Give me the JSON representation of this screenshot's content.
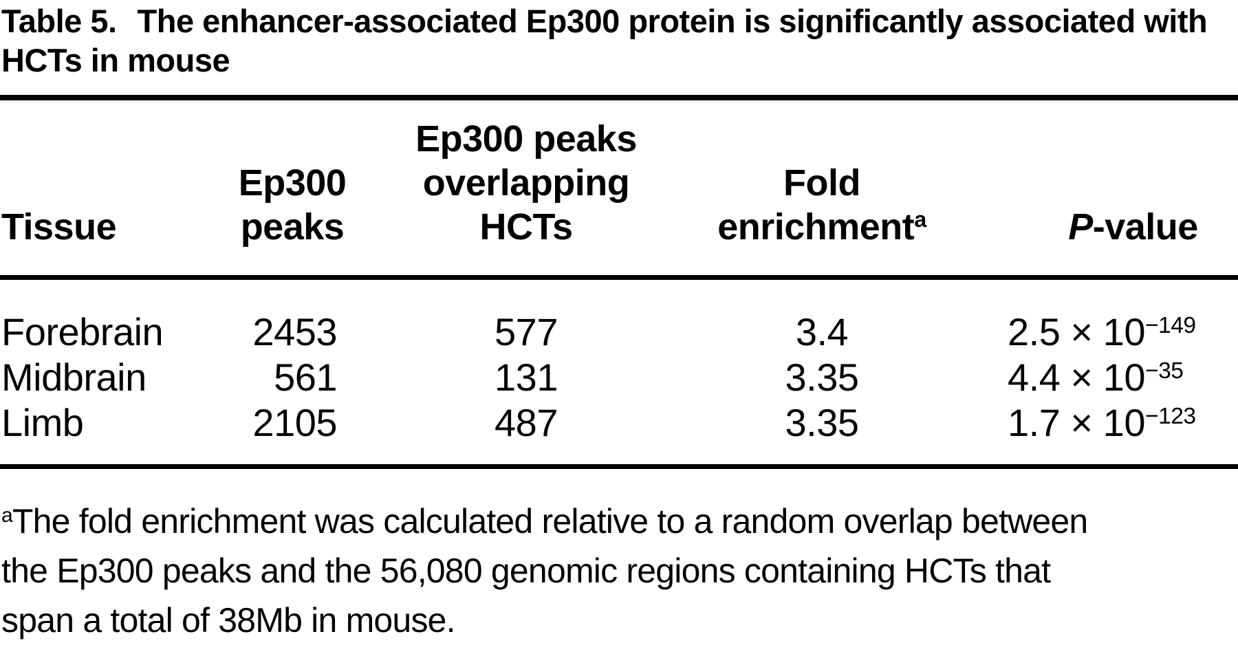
{
  "title": {
    "label": "Table 5.",
    "text": "The enhancer-associated Ep300 protein is significantly associated with HCTs in mouse"
  },
  "table": {
    "columns": [
      {
        "lines": [
          "Tissue"
        ]
      },
      {
        "lines": [
          "Ep300",
          "peaks"
        ]
      },
      {
        "lines": [
          "Ep300 peaks",
          "overlapping",
          "HCTs"
        ]
      },
      {
        "lines": [
          "Fold",
          "enrichment"
        ],
        "sup": "a"
      },
      {
        "p_italic": "P",
        "rest": "-value"
      }
    ],
    "rows": [
      {
        "tissue": "Forebrain",
        "ep300_peaks": "2453",
        "overlap": "577",
        "fold": "3.4",
        "p_base": "2.5 × 10",
        "p_exp": "−149"
      },
      {
        "tissue": "Midbrain",
        "ep300_peaks": "561",
        "overlap": "131",
        "fold": "3.35",
        "p_base": "4.4 × 10",
        "p_exp": "−35"
      },
      {
        "tissue": "Limb",
        "ep300_peaks": "2105",
        "overlap": "487",
        "fold": "3.35",
        "p_base": "1.7 × 10",
        "p_exp": "−123"
      }
    ]
  },
  "footnote": {
    "sup": "a",
    "lines": [
      "The fold enrichment was calculated relative to a random overlap between",
      "the Ep300 peaks and the 56,080 genomic regions containing HCTs that",
      "span a total of 38Mb in mouse."
    ]
  },
  "colors": {
    "text": "#000000",
    "background": "#ffffff",
    "rule": "#000000"
  }
}
